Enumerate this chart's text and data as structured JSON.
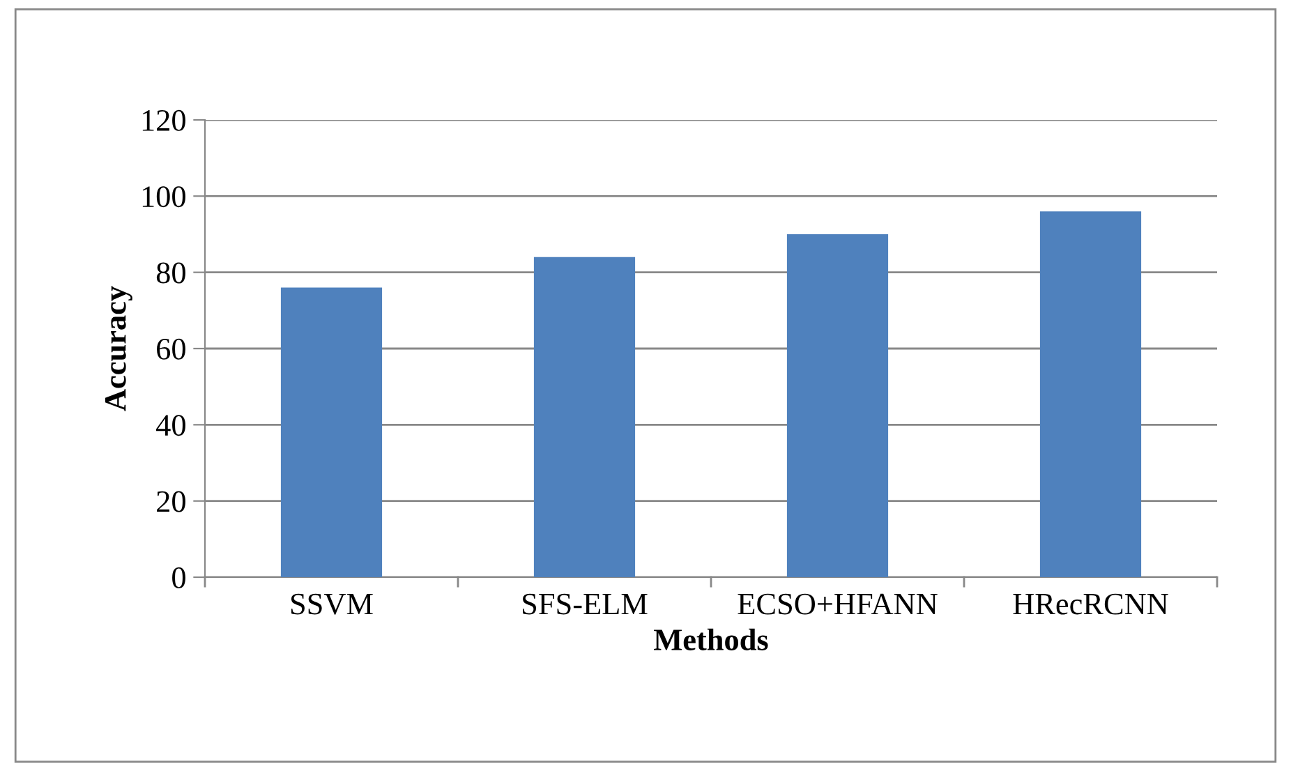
{
  "chart_data": {
    "type": "bar",
    "xlabel": "Methods",
    "ylabel": "Accuracy",
    "categories": [
      "SSVM",
      "SFS-ELM",
      "ECSO+HFANN",
      "HRecRCNN"
    ],
    "values": [
      76,
      84,
      90,
      96
    ],
    "color": "#4f81bd",
    "ylim": [
      0,
      120
    ],
    "yticks": [
      0,
      20,
      40,
      60,
      80,
      100,
      120
    ],
    "grid": "y",
    "legend": false
  }
}
